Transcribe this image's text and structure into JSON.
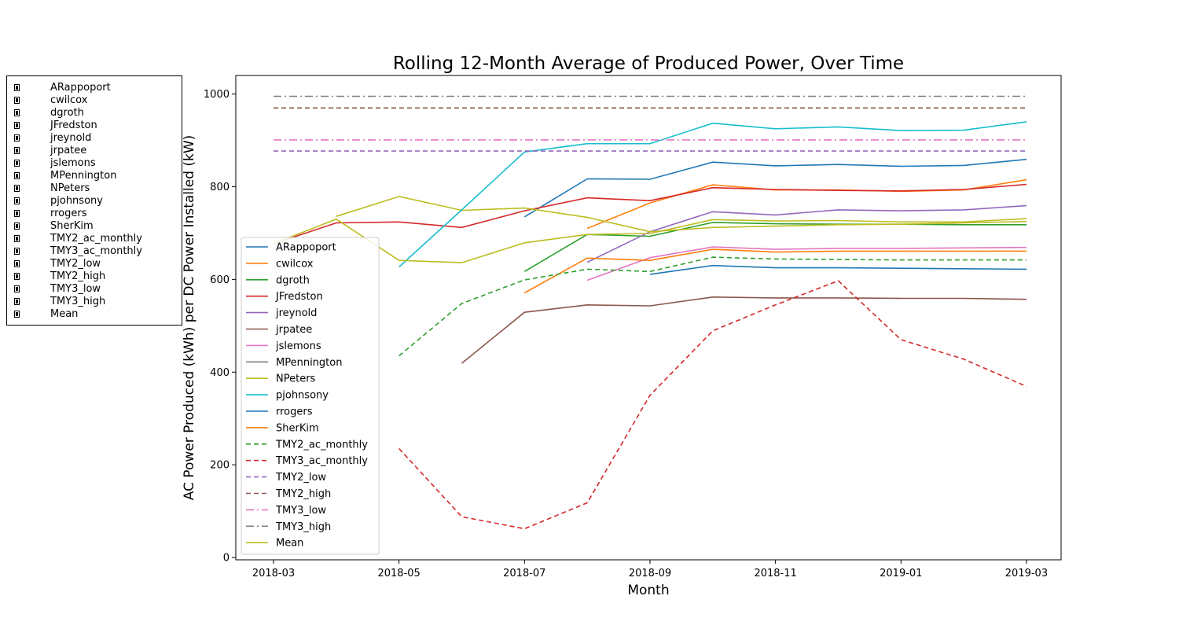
{
  "checklist": {
    "items": [
      "ARappoport",
      "cwilcox",
      "dgroth",
      "JFredston",
      "jreynold",
      "jrpatee",
      "jslemons",
      "MPennington",
      "NPeters",
      "pjohnsony",
      "rrogers",
      "SherKim",
      "TMY2_ac_monthly",
      "TMY3_ac_monthly",
      "TMY2_low",
      "TMY2_high",
      "TMY3_low",
      "TMY3_high",
      "Mean"
    ]
  },
  "chart_data": {
    "type": "line",
    "title": "Rolling 12-Month Average of Produced Power, Over Time",
    "xlabel": "Month",
    "ylabel": "AC Power Produced (kWh) per DC Power Installed (kW)",
    "x": [
      "2018-03",
      "2018-04",
      "2018-05",
      "2018-06",
      "2018-07",
      "2018-08",
      "2018-09",
      "2018-10",
      "2018-11",
      "2018-12",
      "2019-01",
      "2019-02",
      "2019-03"
    ],
    "xticks": [
      "2018-03",
      "2018-05",
      "2018-07",
      "2018-09",
      "2018-11",
      "2019-01",
      "2019-03"
    ],
    "ylim": [
      -5,
      1040
    ],
    "yticks": [
      0,
      200,
      400,
      600,
      800,
      1000
    ],
    "grid": false,
    "legend": "lower-left",
    "series": [
      {
        "name": "ARappoport",
        "color": "#1f77b4",
        "style": "solid",
        "values": [
          null,
          null,
          null,
          null,
          735,
          817,
          816,
          853,
          845,
          848,
          844,
          846,
          859
        ]
      },
      {
        "name": "cwilcox",
        "color": "#ff7f0e",
        "style": "solid",
        "values": [
          null,
          null,
          null,
          null,
          null,
          710,
          765,
          804,
          793,
          793,
          790,
          793,
          815
        ]
      },
      {
        "name": "dgroth",
        "color": "#2ca02c",
        "style": "solid",
        "values": [
          null,
          null,
          null,
          null,
          617,
          697,
          693,
          723,
          720,
          719,
          719,
          718,
          718
        ]
      },
      {
        "name": "JFredston",
        "color": "#d62728",
        "style": "solid",
        "values": [
          677,
          722,
          724,
          712,
          748,
          776,
          770,
          798,
          794,
          792,
          791,
          794,
          805
        ]
      },
      {
        "name": "jreynold",
        "color": "#9467bd",
        "style": "solid",
        "values": [
          null,
          null,
          null,
          null,
          null,
          637,
          703,
          746,
          739,
          750,
          748,
          750,
          759
        ]
      },
      {
        "name": "jrpatee",
        "color": "#8c564b",
        "style": "solid",
        "values": [
          null,
          null,
          null,
          419,
          529,
          545,
          543,
          562,
          560,
          560,
          559,
          559,
          557
        ]
      },
      {
        "name": "jslemons",
        "color": "#e377c2",
        "style": "solid",
        "values": [
          null,
          null,
          null,
          null,
          null,
          598,
          647,
          670,
          665,
          667,
          667,
          668,
          669
        ]
      },
      {
        "name": "MPennington",
        "color": "#7f7f7f",
        "style": "solid",
        "values": [
          null,
          null,
          null,
          null,
          null,
          null,
          null,
          null,
          null,
          null,
          null,
          null,
          null
        ]
      },
      {
        "name": "NPeters",
        "color": "#bcbd22",
        "style": "solid",
        "values": [
          null,
          736,
          779,
          749,
          754,
          734,
          703,
          712,
          715,
          718,
          719,
          722,
          725
        ]
      },
      {
        "name": "pjohnsony",
        "color": "#17becf",
        "style": "solid",
        "values": [
          null,
          null,
          627,
          750,
          875,
          893,
          893,
          937,
          925,
          929,
          921,
          922,
          940
        ]
      },
      {
        "name": "rrogers",
        "color": "#1f77b4",
        "style": "solid",
        "values": [
          null,
          null,
          null,
          null,
          null,
          null,
          611,
          630,
          625,
          625,
          624,
          623,
          622
        ]
      },
      {
        "name": "SherKim",
        "color": "#ff7f0e",
        "style": "solid",
        "values": [
          null,
          null,
          null,
          null,
          571,
          646,
          641,
          665,
          659,
          661,
          661,
          661,
          661
        ]
      },
      {
        "name": "TMY2_ac_monthly",
        "color": "#2ca02c",
        "style": "dashed",
        "values": [
          null,
          null,
          435,
          548,
          599,
          622,
          617,
          648,
          644,
          643,
          642,
          642,
          642
        ]
      },
      {
        "name": "TMY3_ac_monthly",
        "color": "#d62728",
        "style": "dashed",
        "values": [
          null,
          null,
          235,
          88,
          62,
          118,
          350,
          489,
          545,
          597,
          470,
          428,
          369
        ]
      },
      {
        "name": "TMY2_low",
        "color": "#9467bd",
        "style": "dashed",
        "values": [
          877,
          877,
          877,
          877,
          877,
          877,
          877,
          877,
          877,
          877,
          877,
          877,
          877
        ]
      },
      {
        "name": "TMY2_high",
        "color": "#8c564b",
        "style": "dashed",
        "values": [
          970,
          970,
          970,
          970,
          970,
          970,
          970,
          970,
          970,
          970,
          970,
          970,
          970
        ]
      },
      {
        "name": "TMY3_low",
        "color": "#e377c2",
        "style": "dashdot",
        "values": [
          901,
          901,
          901,
          901,
          901,
          901,
          901,
          901,
          901,
          901,
          901,
          901,
          901
        ]
      },
      {
        "name": "TMY3_high",
        "color": "#7f7f7f",
        "style": "dashdot",
        "values": [
          995,
          995,
          995,
          995,
          995,
          995,
          995,
          995,
          995,
          995,
          995,
          995,
          995
        ]
      },
      {
        "name": "Mean",
        "color": "#bcbd22",
        "style": "solid",
        "values": [
          677,
          730,
          641,
          636,
          679,
          697,
          699,
          729,
          726,
          727,
          724,
          724,
          731
        ]
      }
    ]
  }
}
